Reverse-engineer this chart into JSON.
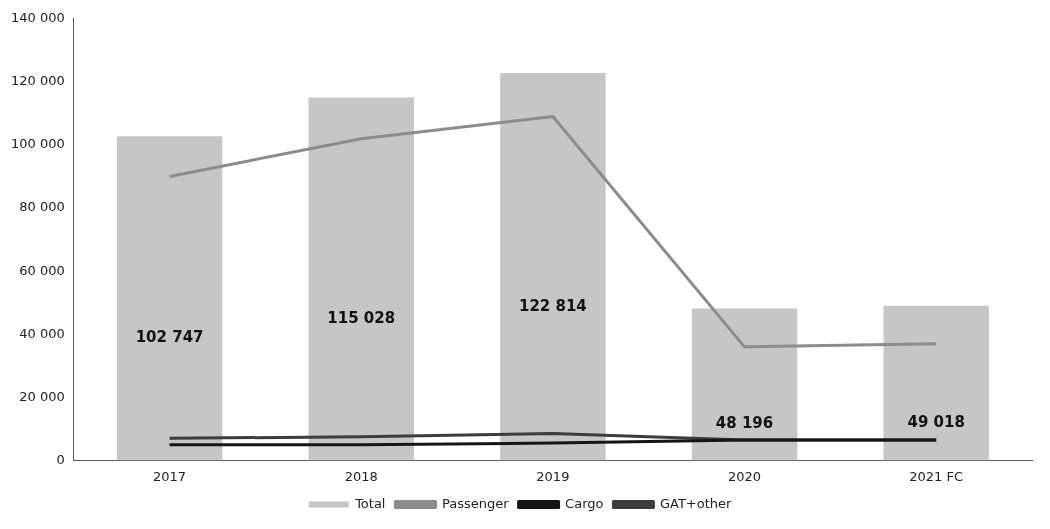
{
  "chart_data": {
    "type": "bar",
    "categories": [
      "2017",
      "2018",
      "2019",
      "2020",
      "2021 FC"
    ],
    "series": [
      {
        "name": "Total",
        "color": "#c6c6c6",
        "values": [
          102747,
          115028,
          122814,
          48196,
          49018
        ],
        "value_labels": [
          "102 747",
          "115 028",
          "122 814",
          "48 196",
          "49 018"
        ]
      },
      {
        "name": "Passenger",
        "type": "line",
        "color": "#8c8c8c",
        "values": [
          90000,
          102000,
          109000,
          36000,
          37000
        ]
      },
      {
        "name": "Cargo",
        "type": "line",
        "color": "#151515",
        "values": [
          5000,
          5000,
          5500,
          6500,
          6500
        ]
      },
      {
        "name": "GAT+other",
        "type": "line",
        "color": "#3c3c3c",
        "values": [
          7000,
          7500,
          8500,
          6500,
          6500
        ]
      }
    ],
    "ylim": [
      0,
      140000
    ],
    "yticks": [
      {
        "value": 0,
        "label": "0"
      },
      {
        "value": 20000,
        "label": "20 000"
      },
      {
        "value": 40000,
        "label": "40 000"
      },
      {
        "value": 60000,
        "label": "60 000"
      },
      {
        "value": 80000,
        "label": "80 000"
      },
      {
        "value": 100000,
        "label": "100 000"
      },
      {
        "value": 120000,
        "label": "120 000"
      },
      {
        "value": 140000,
        "label": "140 000"
      }
    ],
    "grid": false,
    "legend": "bottom",
    "marker": "none",
    "line_style": "solid"
  }
}
